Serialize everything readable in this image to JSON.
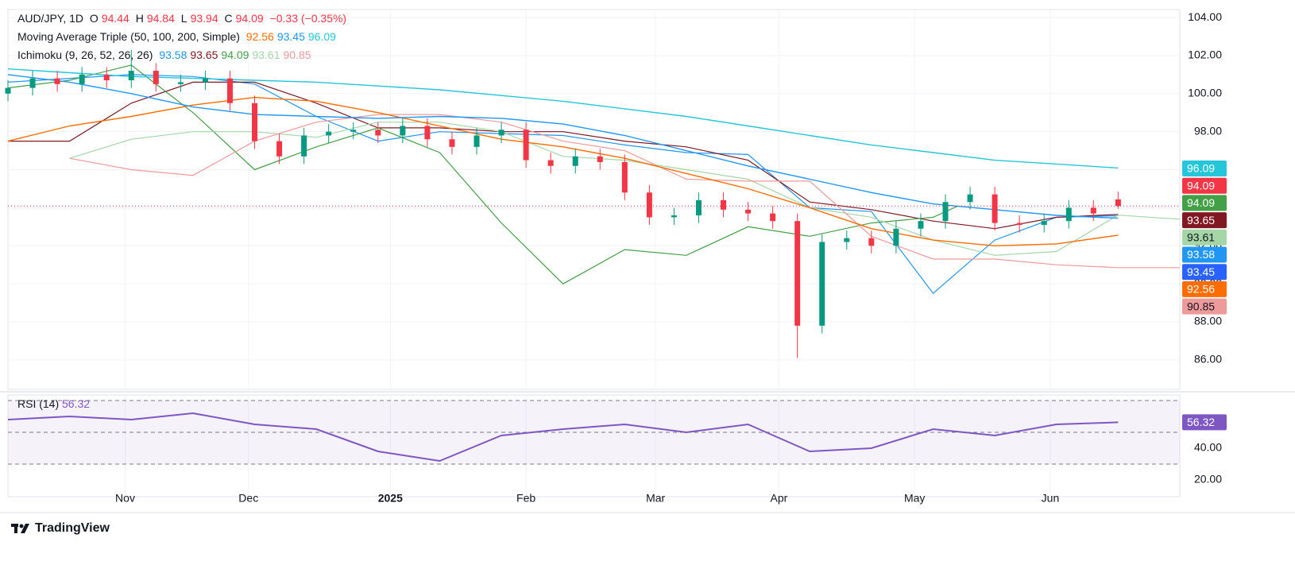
{
  "chart_data": {
    "type": "candlestick",
    "title": "AUD/JPY, 1D",
    "ohlc_letters": [
      "O",
      "H",
      "L",
      "C"
    ],
    "change": "−0.33 (−0.35%)",
    "up_color": "#089981",
    "down_color": "#f23645",
    "xlim": [
      0,
      190
    ],
    "ylim": [
      84.45,
      104.42
    ],
    "xticks": [
      {
        "value": 19,
        "label": "Nov"
      },
      {
        "value": 39,
        "label": "Dec"
      },
      {
        "value": 62,
        "label": "2025"
      },
      {
        "value": 84,
        "label": "Feb"
      },
      {
        "value": 105,
        "label": "Mar"
      },
      {
        "value": 125,
        "label": "Apr"
      },
      {
        "value": 147,
        "label": "May"
      },
      {
        "value": 169,
        "label": "Jun"
      }
    ],
    "yticks": [
      {
        "value": 86,
        "label": "86.00"
      },
      {
        "value": 88,
        "label": "88.00"
      },
      {
        "value": 90,
        "label": "90.00"
      },
      {
        "value": 92,
        "label": "92.00"
      },
      {
        "value": 94,
        "label": "94.00"
      },
      {
        "value": 96,
        "label": "96.00"
      },
      {
        "value": 98,
        "label": "98.00"
      },
      {
        "value": 100,
        "label": "100.00"
      },
      {
        "value": 102,
        "label": "102.00"
      },
      {
        "value": 104,
        "label": "104.00"
      }
    ],
    "x": [
      0,
      4,
      8,
      12,
      16,
      20,
      24,
      28,
      32,
      36,
      40,
      44,
      48,
      52,
      56,
      60,
      64,
      68,
      72,
      76,
      80,
      84,
      88,
      92,
      96,
      100,
      104,
      108,
      112,
      116,
      120,
      124,
      128,
      132,
      136,
      140,
      144,
      148,
      152,
      156,
      160,
      164,
      168,
      172,
      176,
      180
    ],
    "open": [
      100.0,
      100.3,
      100.8,
      100.5,
      101.0,
      100.7,
      101.2,
      100.5,
      100.6,
      100.8,
      99.5,
      97.5,
      96.7,
      97.8,
      98.0,
      98.1,
      97.8,
      98.3,
      97.6,
      97.2,
      97.8,
      98.1,
      96.5,
      96.2,
      96.7,
      96.4,
      94.8,
      93.5,
      93.6,
      94.4,
      93.9,
      93.7,
      93.3,
      87.8,
      92.2,
      92.4,
      92.0,
      92.9,
      93.3,
      94.3,
      94.7,
      93.2,
      93.1,
      93.3,
      94.0,
      94.44
    ],
    "high": [
      100.7,
      101.2,
      101.2,
      101.4,
      101.4,
      102.3,
      101.6,
      101.0,
      101.2,
      101.2,
      99.9,
      97.9,
      98.2,
      98.4,
      98.5,
      98.5,
      98.7,
      98.7,
      98.0,
      98.2,
      98.5,
      98.5,
      96.9,
      97.1,
      97.1,
      96.8,
      95.2,
      94.0,
      94.8,
      94.8,
      94.3,
      94.1,
      93.7,
      92.6,
      92.8,
      92.8,
      93.3,
      93.7,
      94.7,
      95.1,
      95.1,
      93.6,
      93.7,
      94.4,
      94.4,
      94.84
    ],
    "low": [
      99.6,
      99.9,
      100.1,
      100.1,
      100.3,
      100.3,
      100.1,
      100.1,
      100.2,
      99.1,
      97.1,
      96.3,
      96.3,
      97.4,
      97.6,
      97.4,
      97.4,
      97.2,
      96.8,
      96.8,
      97.4,
      96.1,
      95.8,
      95.8,
      96.0,
      94.4,
      93.1,
      93.1,
      93.2,
      93.5,
      93.3,
      92.9,
      86.1,
      87.4,
      91.8,
      91.6,
      91.6,
      92.5,
      92.9,
      93.9,
      92.8,
      92.7,
      92.7,
      92.9,
      93.3,
      93.94
    ],
    "close": [
      100.3,
      100.8,
      100.5,
      101.0,
      100.7,
      101.2,
      100.5,
      100.6,
      100.8,
      99.5,
      97.5,
      96.7,
      97.8,
      98.0,
      98.1,
      97.8,
      98.3,
      97.6,
      97.2,
      97.8,
      98.1,
      96.5,
      96.2,
      96.7,
      96.4,
      94.8,
      93.5,
      93.6,
      94.4,
      93.9,
      93.7,
      93.3,
      87.8,
      92.2,
      92.4,
      92.0,
      92.9,
      93.3,
      94.3,
      94.7,
      93.2,
      93.1,
      93.3,
      94.0,
      93.7,
      94.09
    ],
    "ma": {
      "label": "Moving Average Triple (50, 100, 200, Simple)",
      "x": [
        0,
        10,
        20,
        30,
        40,
        50,
        60,
        70,
        80,
        90,
        100,
        110,
        120,
        130,
        140,
        150,
        160,
        170,
        180
      ],
      "series": [
        {
          "color": "#ff6d00",
          "values": [
            97.5,
            98.3,
            98.8,
            99.4,
            99.8,
            99.6,
            99.0,
            98.3,
            97.6,
            97.2,
            96.6,
            95.8,
            95.0,
            94.0,
            92.9,
            92.3,
            92.0,
            92.1,
            92.56
          ]
        },
        {
          "color": "#2196f3",
          "values": [
            101.0,
            100.6,
            100.0,
            99.3,
            98.9,
            98.8,
            98.7,
            98.8,
            98.7,
            98.4,
            97.8,
            97.0,
            96.2,
            95.5,
            94.8,
            94.2,
            93.9,
            93.6,
            93.45
          ]
        },
        {
          "color": "#26c6da",
          "values": [
            101.3,
            101.1,
            100.9,
            100.8,
            100.7,
            100.6,
            100.4,
            100.2,
            99.9,
            99.6,
            99.2,
            98.8,
            98.3,
            97.8,
            97.3,
            96.9,
            96.5,
            96.3,
            96.09
          ]
        }
      ]
    },
    "ichimoku": {
      "label": "Ichimoku (9, 26, 52, 26, 26)",
      "series": [
        {
          "color": "#2196f3",
          "x": [
            0,
            10,
            20,
            30,
            40,
            50,
            60,
            70,
            80,
            90,
            100,
            110,
            120,
            130,
            140,
            150,
            160,
            170,
            180
          ],
          "values": [
            100.6,
            100.8,
            101.0,
            100.9,
            100.5,
            98.8,
            97.5,
            98.0,
            97.9,
            97.8,
            97.3,
            96.9,
            96.8,
            94.0,
            93.8,
            89.5,
            92.3,
            93.5,
            93.58
          ]
        },
        {
          "color": "#801922",
          "x": [
            0,
            10,
            20,
            30,
            40,
            50,
            60,
            70,
            80,
            90,
            100,
            110,
            120,
            130,
            140,
            150,
            160,
            170,
            180
          ],
          "values": [
            97.5,
            97.5,
            99.5,
            100.6,
            100.6,
            99.5,
            98.2,
            98.2,
            98.0,
            98.0,
            97.5,
            97.2,
            96.5,
            94.3,
            93.9,
            93.3,
            92.9,
            93.5,
            93.65
          ]
        },
        {
          "color": "#43a047",
          "x": [
            0,
            10,
            20,
            30,
            40,
            50,
            60,
            70,
            80,
            90,
            100,
            110,
            120,
            130,
            140,
            150,
            154
          ],
          "values": [
            100.3,
            100.7,
            101.5,
            99.0,
            96.0,
            97.2,
            98.2,
            96.9,
            93.2,
            90.0,
            91.8,
            91.5,
            93.0,
            92.5,
            93.2,
            93.5,
            94.09
          ]
        },
        {
          "color": "#a5d6a7",
          "x": [
            10,
            20,
            30,
            40,
            50,
            60,
            70,
            80,
            90,
            100,
            110,
            120,
            130,
            140,
            150,
            160,
            170,
            180,
            190
          ],
          "values": [
            96.6,
            97.6,
            98.0,
            98.0,
            97.7,
            98.5,
            98.5,
            98.0,
            96.7,
            96.5,
            96.0,
            95.5,
            94.0,
            93.5,
            92.3,
            91.5,
            91.7,
            93.61,
            93.4
          ]
        },
        {
          "color": "#ef9a9a",
          "x": [
            10,
            20,
            30,
            40,
            50,
            60,
            70,
            80,
            90,
            100,
            110,
            120,
            130,
            140,
            150,
            160,
            170,
            180,
            190
          ],
          "values": [
            96.6,
            96.0,
            95.7,
            97.5,
            98.5,
            98.9,
            98.9,
            98.5,
            97.5,
            97.0,
            95.5,
            95.4,
            95.4,
            92.5,
            91.3,
            91.3,
            91.0,
            90.85,
            90.85
          ]
        }
      ]
    },
    "rsi": {
      "label": "RSI (14)",
      "color": "#7e57c2",
      "ylim": [
        9.5,
        73.5
      ],
      "yticks": [
        {
          "value": 20,
          "label": "20.00"
        },
        {
          "value": 40,
          "label": "40.00"
        }
      ],
      "levels": [
        70,
        50,
        30
      ],
      "x": [
        0,
        10,
        20,
        30,
        40,
        50,
        60,
        70,
        80,
        90,
        100,
        110,
        120,
        130,
        140,
        150,
        160,
        170,
        180
      ],
      "values": [
        58,
        60,
        58,
        62,
        55,
        52,
        38,
        32,
        48,
        52,
        55,
        50,
        55,
        38,
        40,
        52,
        48,
        55,
        56.32
      ]
    },
    "branding": "TradingView"
  }
}
